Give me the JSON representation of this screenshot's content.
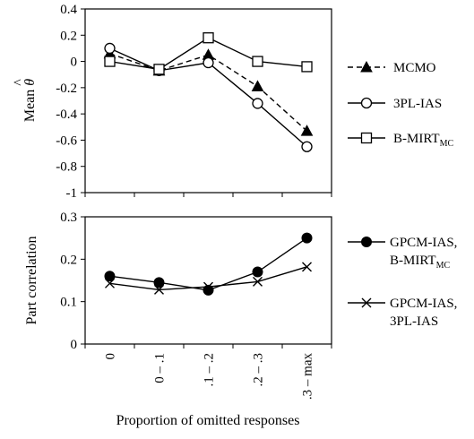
{
  "xlabel": "Proportion of omitted responses",
  "chart_data": [
    {
      "type": "line",
      "title": "",
      "xlabel": "Proportion of omitted responses",
      "ylabel": "Mean θ̂",
      "ylabel_text": "Mean",
      "ylabel_symbol": "θ",
      "ylabel_hat": "^",
      "categories": [
        "0",
        "0 – .1",
        ".1 – .2",
        ".2 – .3",
        ".3 – max"
      ],
      "ylim": [
        -1,
        0.4
      ],
      "yticks": [
        "0.4",
        "0.2",
        "0",
        "-0.2",
        "-0.4",
        "-0.6",
        "-0.8",
        "-1"
      ],
      "ytick_values": [
        0.4,
        0.2,
        0,
        -0.2,
        -0.4,
        -0.6,
        -0.8,
        -1
      ],
      "grid": false,
      "legend_position": "right",
      "series": [
        {
          "name": "MCMO",
          "sub": "",
          "marker": "triangle",
          "dash": true,
          "values": [
            0.06,
            -0.07,
            0.05,
            -0.19,
            -0.53
          ]
        },
        {
          "name": "3PL-IAS",
          "sub": "",
          "marker": "circle-open",
          "dash": false,
          "values": [
            0.1,
            -0.07,
            -0.01,
            -0.32,
            -0.65
          ]
        },
        {
          "name": "B-MIRT",
          "sub": "MC",
          "marker": "square-open",
          "dash": false,
          "values": [
            0.0,
            -0.06,
            0.18,
            0.0,
            -0.04
          ]
        }
      ]
    },
    {
      "type": "line",
      "title": "",
      "xlabel": "Proportion of omitted responses",
      "ylabel": "Part correlation",
      "categories": [
        "0",
        "0 – .1",
        ".1 – .2",
        ".2 – .3",
        ".3 – max"
      ],
      "ylim": [
        0,
        0.3
      ],
      "yticks": [
        "0.3",
        "0.2",
        "0.1",
        "0"
      ],
      "ytick_values": [
        0.3,
        0.2,
        0.1,
        0
      ],
      "grid": false,
      "legend_position": "right",
      "series": [
        {
          "name": "GPCM-IAS,",
          "line2": "B-MIRT",
          "sub": "MC",
          "marker": "circle-filled",
          "dash": false,
          "values": [
            0.16,
            0.145,
            0.127,
            0.17,
            0.25
          ]
        },
        {
          "name": "GPCM-IAS,",
          "line2": "3PL-IAS",
          "sub": "",
          "marker": "x",
          "dash": false,
          "values": [
            0.143,
            0.128,
            0.135,
            0.147,
            0.182
          ]
        }
      ]
    }
  ]
}
